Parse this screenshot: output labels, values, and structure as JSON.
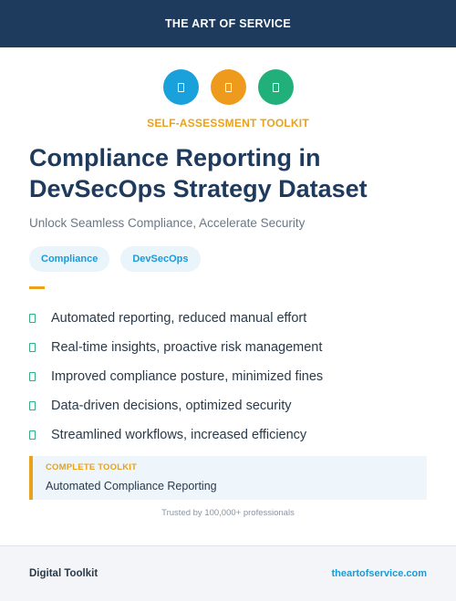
{
  "header": {
    "brand": "THE ART OF SERVICE"
  },
  "icons": [
    {
      "name": "document-icon",
      "color": "#1aa0db"
    },
    {
      "name": "document-icon",
      "color": "#ee9a1d"
    },
    {
      "name": "document-icon",
      "color": "#22b07a"
    }
  ],
  "hero": {
    "kicker": "SELF-ASSESSMENT TOOLKIT",
    "title": "Compliance Reporting in DevSecOps Strategy Dataset",
    "subtitle": "Unlock Seamless Compliance, Accelerate Security",
    "tags": [
      "Compliance",
      "DevSecOps"
    ]
  },
  "features": [
    "Automated reporting, reduced manual effort",
    "Real-time insights, proactive risk management",
    "Improved compliance posture, minimized fines",
    "Data-driven decisions, optimized security",
    "Streamlined workflows, increased efficiency"
  ],
  "callout": {
    "kicker": "COMPLETE TOOLKIT",
    "text": "Automated Compliance Reporting"
  },
  "trusted": "Trusted by 100,000+ professionals",
  "footer": {
    "left": "Digital Toolkit",
    "right": "theartofservice.com"
  },
  "colors": {
    "navy": "#1e3a5c",
    "accent": "#e8a21c",
    "blue": "#1a9bd6",
    "green": "#2bb07f"
  }
}
